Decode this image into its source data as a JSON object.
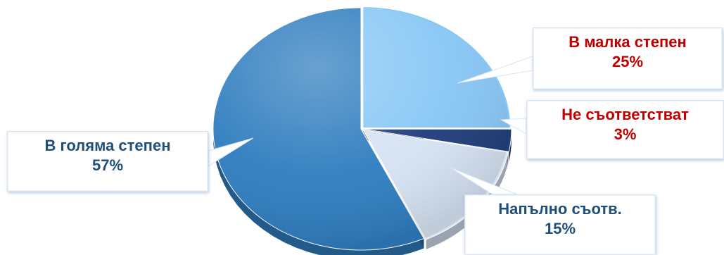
{
  "chart_data": {
    "type": "pie",
    "style": "3d-pie-with-callouts",
    "slices": [
      {
        "label": "В малка степен",
        "value": 25,
        "percent_label": "25%",
        "color": "#88c7f5",
        "label_color": "#c00000"
      },
      {
        "label": "Не съответстват",
        "value": 3,
        "percent_label": "3%",
        "color": "#1f3d7a",
        "label_color": "#c00000"
      },
      {
        "label": "Напълно съотв.",
        "value": 15,
        "percent_label": "15%",
        "color": "#d6e3f3",
        "label_color": "#1f4e79"
      },
      {
        "label": "В голяма степен",
        "value": 57,
        "percent_label": "57%",
        "color": "#2f7dbf",
        "label_color": "#1f4e79"
      }
    ],
    "start_angle": "12 o'clock",
    "direction": "clockwise"
  }
}
